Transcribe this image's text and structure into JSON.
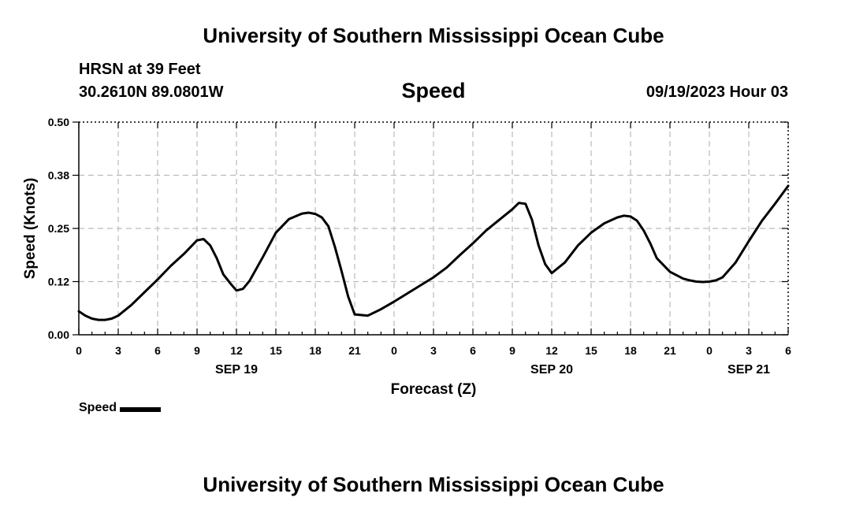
{
  "header": {
    "title": "University of Southern Mississippi Ocean Cube",
    "station": "HRSN at 39 Feet",
    "coords": "30.2610N  89.0801W",
    "date": "09/19/2023 Hour 03"
  },
  "footer": {
    "title": "University of Southern Mississippi Ocean Cube"
  },
  "colors": {
    "line": "#000000",
    "grid": "#bbbbbb"
  },
  "chart_data": {
    "type": "line",
    "title": "Speed",
    "xlabel": "Forecast (Z)",
    "ylabel": "Speed (Knots)",
    "xlim": [
      0,
      54
    ],
    "ylim": [
      0,
      0.5
    ],
    "x_ticks": [
      0,
      3,
      6,
      9,
      12,
      15,
      18,
      21,
      24,
      27,
      30,
      33,
      36,
      39,
      42,
      45,
      48,
      51,
      54
    ],
    "x_tick_labels": [
      "0",
      "3",
      "6",
      "9",
      "12",
      "15",
      "18",
      "21",
      "0",
      "3",
      "6",
      "9",
      "12",
      "15",
      "18",
      "21",
      "0",
      "3",
      "6"
    ],
    "y_ticks": [
      0,
      0.125,
      0.25,
      0.375,
      0.5
    ],
    "y_tick_labels": [
      "0.00",
      "0.12",
      "0.25",
      "0.38",
      "0.50"
    ],
    "day_labels": [
      {
        "x": 12,
        "text": "SEP 19"
      },
      {
        "x": 36,
        "text": "SEP 20"
      },
      {
        "x": 51,
        "text": "SEP 21"
      }
    ],
    "legend": [
      {
        "name": "Speed",
        "placement": "bottom-left"
      }
    ],
    "series": [
      {
        "name": "Speed",
        "x": [
          0,
          0.5,
          1,
          1.5,
          2,
          2.5,
          3,
          4,
          5,
          6,
          7,
          8,
          9,
          9.5,
          10,
          10.5,
          11,
          11.5,
          12,
          12.5,
          13,
          14,
          15,
          16,
          17,
          17.5,
          18,
          18.5,
          19,
          19.5,
          20,
          20.5,
          21,
          22,
          23,
          24,
          25,
          26,
          27,
          28,
          29,
          30,
          31,
          32,
          33,
          33.5,
          34,
          34.5,
          35,
          35.5,
          36,
          37,
          38,
          39,
          40,
          41,
          41.5,
          42,
          42.5,
          43,
          43.5,
          44,
          45,
          46,
          46.5,
          47,
          47.5,
          48,
          48.5,
          49,
          50,
          51,
          52,
          53,
          54
        ],
        "y": [
          0.055,
          0.045,
          0.038,
          0.035,
          0.035,
          0.038,
          0.045,
          0.07,
          0.1,
          0.13,
          0.162,
          0.19,
          0.222,
          0.225,
          0.21,
          0.18,
          0.142,
          0.122,
          0.104,
          0.108,
          0.127,
          0.182,
          0.24,
          0.272,
          0.285,
          0.287,
          0.284,
          0.276,
          0.255,
          0.206,
          0.15,
          0.09,
          0.048,
          0.045,
          0.06,
          0.078,
          0.097,
          0.116,
          0.135,
          0.158,
          0.187,
          0.215,
          0.245,
          0.27,
          0.295,
          0.31,
          0.308,
          0.27,
          0.21,
          0.166,
          0.145,
          0.17,
          0.21,
          0.24,
          0.262,
          0.276,
          0.28,
          0.278,
          0.268,
          0.245,
          0.215,
          0.18,
          0.148,
          0.132,
          0.128,
          0.125,
          0.124,
          0.125,
          0.128,
          0.135,
          0.17,
          0.22,
          0.268,
          0.308,
          0.35
        ]
      }
    ]
  }
}
